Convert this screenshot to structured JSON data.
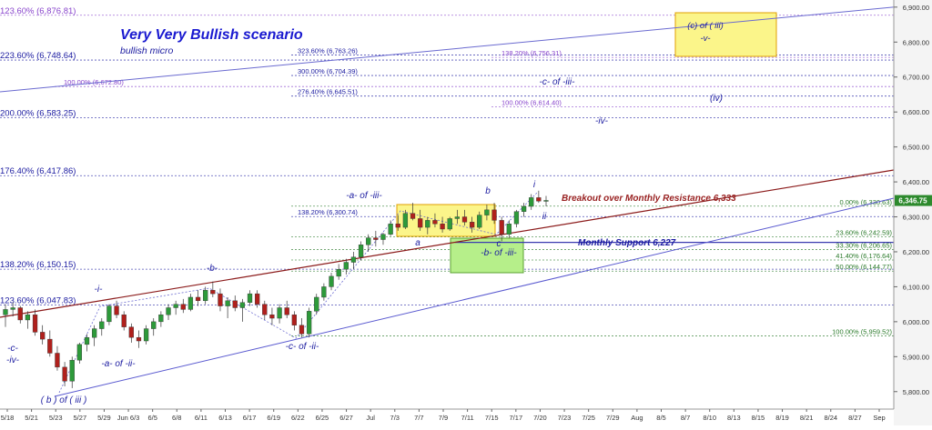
{
  "chart_data": {
    "type": "candlestick",
    "title": "Very Very Bullish scenario",
    "subtitle": "bullish micro",
    "ylim": [
      5750,
      6910
    ],
    "y_ticks": [
      5800,
      5900,
      6000,
      6100,
      6200,
      6300,
      6400,
      6500,
      6600,
      6700,
      6800,
      6900
    ],
    "y_tick_labels": [
      "5,800.00",
      "5,900.00",
      "6,000.00",
      "6,100.00",
      "6,200.00",
      "6,300.00",
      "6,400.00",
      "6,500.00",
      "6,600.00",
      "6,700.00",
      "6,800.00",
      "6,900.00"
    ],
    "x_tick_labels": [
      "5/18",
      "5/21",
      "5/23",
      "5/27",
      "5/29",
      "Jun 6/3",
      "6/5",
      "6/8",
      "6/11",
      "6/13",
      "6/17",
      "6/19",
      "6/22",
      "6/25",
      "6/27",
      "Jul",
      "7/3",
      "7/7",
      "7/9",
      "7/11",
      "7/15",
      "7/17",
      "7/20",
      "7/23",
      "7/25",
      "7/29",
      "Aug",
      "8/5",
      "8/7",
      "8/10",
      "8/13",
      "8/15",
      "8/19",
      "8/21",
      "8/24",
      "8/27",
      "Sep"
    ],
    "last_price": "6,346.75",
    "last_price_value": 6346.75,
    "fib_levels": [
      {
        "label": "123.60% (6,876.81)",
        "value": 6876.81,
        "color": "#8844cc",
        "side": "left"
      },
      {
        "label": "223.60% (6,748.64)",
        "value": 6748.64,
        "color": "#1a1aa0",
        "side": "left"
      },
      {
        "label": "323.60% (6,763.26)",
        "value": 6763.26,
        "color": "#1a1aa0",
        "side": "mid"
      },
      {
        "label": "138.20% (6,756.31)",
        "value": 6756.31,
        "color": "#8844cc",
        "side": "mid2"
      },
      {
        "label": "300.00% (6,704.39)",
        "value": 6704.39,
        "color": "#1a1aa0",
        "side": "mid"
      },
      {
        "label": "100.00% (6,672.80)",
        "value": 6672.8,
        "color": "#8844cc",
        "side": "left2"
      },
      {
        "label": "276.40% (6,645.51)",
        "value": 6645.51,
        "color": "#1a1aa0",
        "side": "mid"
      },
      {
        "label": "100.00% (6,614.40)",
        "value": 6614.4,
        "color": "#8844cc",
        "side": "mid2"
      },
      {
        "label": "200.00% (6,583.25)",
        "value": 6583.25,
        "color": "#1a1aa0",
        "side": "left"
      },
      {
        "label": "176.40% (6,417.86)",
        "value": 6417.86,
        "color": "#1a1aa0",
        "side": "left"
      },
      {
        "label": "138.20% (6,300.74)",
        "value": 6300.74,
        "color": "#1a1aa0",
        "side": "mid"
      },
      {
        "label": "0.00% (6,330.63)",
        "value": 6330.63,
        "color": "#2a7a2a",
        "side": "right"
      },
      {
        "label": "23.60% (6,242.59)",
        "value": 6242.59,
        "color": "#2a7a2a",
        "side": "right"
      },
      {
        "label": "33.30% (6,206.65)",
        "value": 6206.65,
        "color": "#2a7a2a",
        "side": "right"
      },
      {
        "label": "41.40% (6,176.64)",
        "value": 6176.64,
        "color": "#2a7a2a",
        "side": "right"
      },
      {
        "label": "50.00% (6,144.77)",
        "value": 6144.77,
        "color": "#2a7a2a",
        "side": "right"
      },
      {
        "label": "138.20% (6,150.15)",
        "value": 6150.15,
        "color": "#1a1aa0",
        "side": "left"
      },
      {
        "label": "123.60% (6,047.83)",
        "value": 6047.83,
        "color": "#1a1aa0",
        "side": "left"
      },
      {
        "label": "100.00% (5,959.52)",
        "value": 5959.52,
        "color": "#2a7a2a",
        "side": "right"
      }
    ],
    "annotations": [
      {
        "text": "Breakout over Monthly Resistance 6,333",
        "color": "#992222",
        "style": "italic bold"
      },
      {
        "text": "Monthly Support 6,227",
        "color": "#1a1aa0",
        "style": "italic bold"
      }
    ],
    "wave_labels": [
      "-c-",
      "-iv-",
      "( b ) of ( iii )",
      "-i-",
      "-a- of -ii-",
      "-b-",
      "-c- of -ii-",
      "-a- of -iii-",
      "a",
      "b",
      "c",
      "i",
      "ii",
      "-b- of -iii-",
      "(c) of ( iii)",
      "-v-",
      "-c- of -iii-",
      "-iv-",
      "(iv)"
    ],
    "boxes": [
      {
        "label": "(c) of ( iii)",
        "sub": "-v-",
        "color": "yellow"
      },
      {
        "label": "-b- of -iii-",
        "color": "green"
      },
      {
        "label": "",
        "color": "yellow"
      }
    ],
    "ohlc": [
      [
        6020,
        6050,
        5985,
        6035
      ],
      [
        6035,
        6055,
        6015,
        6040
      ],
      [
        6040,
        6045,
        5995,
        6005
      ],
      [
        6005,
        6030,
        5980,
        6020
      ],
      [
        6020,
        6035,
        5960,
        5970
      ],
      [
        5970,
        5990,
        5935,
        5950
      ],
      [
        5950,
        5975,
        5900,
        5910
      ],
      [
        5910,
        5930,
        5860,
        5870
      ],
      [
        5870,
        5885,
        5815,
        5830
      ],
      [
        5830,
        5900,
        5810,
        5890
      ],
      [
        5890,
        5940,
        5880,
        5935
      ],
      [
        5935,
        5965,
        5915,
        5955
      ],
      [
        5955,
        5990,
        5930,
        5980
      ],
      [
        5980,
        6010,
        5960,
        6000
      ],
      [
        6000,
        6050,
        5990,
        6045
      ],
      [
        6045,
        6060,
        6010,
        6020
      ],
      [
        6020,
        6030,
        5975,
        5985
      ],
      [
        5985,
        5995,
        5940,
        5955
      ],
      [
        5955,
        5975,
        5925,
        5945
      ],
      [
        5945,
        5990,
        5935,
        5980
      ],
      [
        5980,
        6010,
        5960,
        6000
      ],
      [
        6000,
        6030,
        5985,
        6020
      ],
      [
        6020,
        6050,
        6005,
        6040
      ],
      [
        6040,
        6060,
        6020,
        6050
      ],
      [
        6050,
        6065,
        6025,
        6035
      ],
      [
        6035,
        6080,
        6030,
        6070
      ],
      [
        6070,
        6090,
        6045,
        6060
      ],
      [
        6060,
        6100,
        6050,
        6090
      ],
      [
        6090,
        6115,
        6070,
        6080
      ],
      [
        6080,
        6095,
        6030,
        6045
      ],
      [
        6045,
        6070,
        6010,
        6060
      ],
      [
        6060,
        6075,
        6030,
        6040
      ],
      [
        6040,
        6065,
        6000,
        6055
      ],
      [
        6055,
        6090,
        6045,
        6080
      ],
      [
        6080,
        6090,
        6040,
        6050
      ],
      [
        6050,
        6060,
        6005,
        6020
      ],
      [
        6020,
        6040,
        5990,
        6010
      ],
      [
        6010,
        6050,
        5995,
        6040
      ],
      [
        6040,
        6060,
        6010,
        6020
      ],
      [
        6020,
        6030,
        5975,
        5990
      ],
      [
        5990,
        6010,
        5955,
        5965
      ],
      [
        5965,
        6040,
        5955,
        6030
      ],
      [
        6030,
        6080,
        6020,
        6070
      ],
      [
        6070,
        6110,
        6060,
        6100
      ],
      [
        6100,
        6140,
        6090,
        6130
      ],
      [
        6130,
        6165,
        6120,
        6150
      ],
      [
        6150,
        6180,
        6135,
        6170
      ],
      [
        6170,
        6200,
        6150,
        6185
      ],
      [
        6185,
        6230,
        6175,
        6220
      ],
      [
        6220,
        6250,
        6200,
        6240
      ],
      [
        6240,
        6260,
        6215,
        6235
      ],
      [
        6235,
        6255,
        6220,
        6250
      ],
      [
        6250,
        6290,
        6245,
        6280
      ],
      [
        6280,
        6305,
        6260,
        6270
      ],
      [
        6270,
        6320,
        6265,
        6310
      ],
      [
        6310,
        6340,
        6290,
        6295
      ],
      [
        6295,
        6320,
        6260,
        6270
      ],
      [
        6270,
        6300,
        6250,
        6290
      ],
      [
        6290,
        6310,
        6270,
        6280
      ],
      [
        6280,
        6300,
        6255,
        6265
      ],
      [
        6265,
        6300,
        6260,
        6295
      ],
      [
        6295,
        6320,
        6280,
        6300
      ],
      [
        6300,
        6320,
        6275,
        6285
      ],
      [
        6285,
        6300,
        6255,
        6270
      ],
      [
        6270,
        6315,
        6265,
        6305
      ],
      [
        6305,
        6335,
        6290,
        6320
      ],
      [
        6320,
        6340,
        6280,
        6290
      ],
      [
        6290,
        6300,
        6230,
        6250
      ],
      [
        6250,
        6290,
        6240,
        6280
      ],
      [
        6280,
        6320,
        6270,
        6315
      ],
      [
        6315,
        6340,
        6300,
        6330
      ],
      [
        6330,
        6365,
        6320,
        6355
      ],
      [
        6355,
        6375,
        6340,
        6345
      ],
      [
        6345,
        6360,
        6330,
        6347
      ]
    ]
  }
}
